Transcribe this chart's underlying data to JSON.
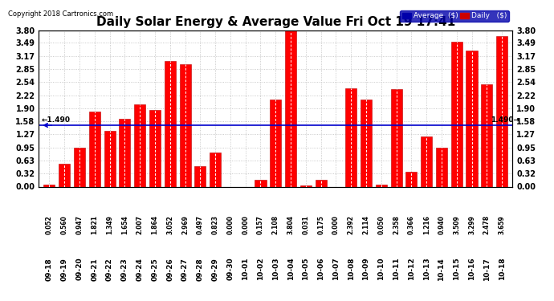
{
  "title": "Daily Solar Energy & Average Value Fri Oct 19 17:41",
  "copyright": "Copyright 2018 Cartronics.com",
  "categories": [
    "09-18",
    "09-19",
    "09-20",
    "09-21",
    "09-22",
    "09-23",
    "09-24",
    "09-25",
    "09-26",
    "09-27",
    "09-28",
    "09-29",
    "09-30",
    "10-01",
    "10-02",
    "10-03",
    "10-04",
    "10-05",
    "10-06",
    "10-07",
    "10-08",
    "10-09",
    "10-10",
    "10-11",
    "10-12",
    "10-13",
    "10-14",
    "10-15",
    "10-16",
    "10-17",
    "10-18"
  ],
  "values": [
    0.052,
    0.56,
    0.947,
    1.821,
    1.349,
    1.654,
    2.007,
    1.864,
    3.052,
    2.969,
    0.497,
    0.823,
    0.0,
    0.0,
    0.157,
    2.108,
    3.804,
    0.031,
    0.175,
    0.0,
    2.392,
    2.114,
    0.05,
    2.358,
    0.366,
    1.216,
    0.94,
    3.509,
    3.299,
    2.478,
    3.659
  ],
  "average_value": 1.49,
  "ylim": [
    0.0,
    3.8
  ],
  "yticks": [
    0.0,
    0.32,
    0.63,
    0.95,
    1.27,
    1.58,
    1.9,
    2.22,
    2.54,
    2.85,
    3.17,
    3.49,
    3.8
  ],
  "bar_color": "#FF0000",
  "bar_edge_color": "#BB0000",
  "average_line_color": "#0000CC",
  "background_color": "#FFFFFF",
  "grid_color": "#BBBBBB",
  "legend_bg_color": "#0000AA",
  "legend_daily_color": "#CC0000",
  "avg_label": "Average  ($)",
  "daily_label": "Daily   ($)",
  "title_fontsize": 11,
  "tick_fontsize": 7,
  "val_fontsize": 5.5,
  "cat_fontsize": 6.5
}
